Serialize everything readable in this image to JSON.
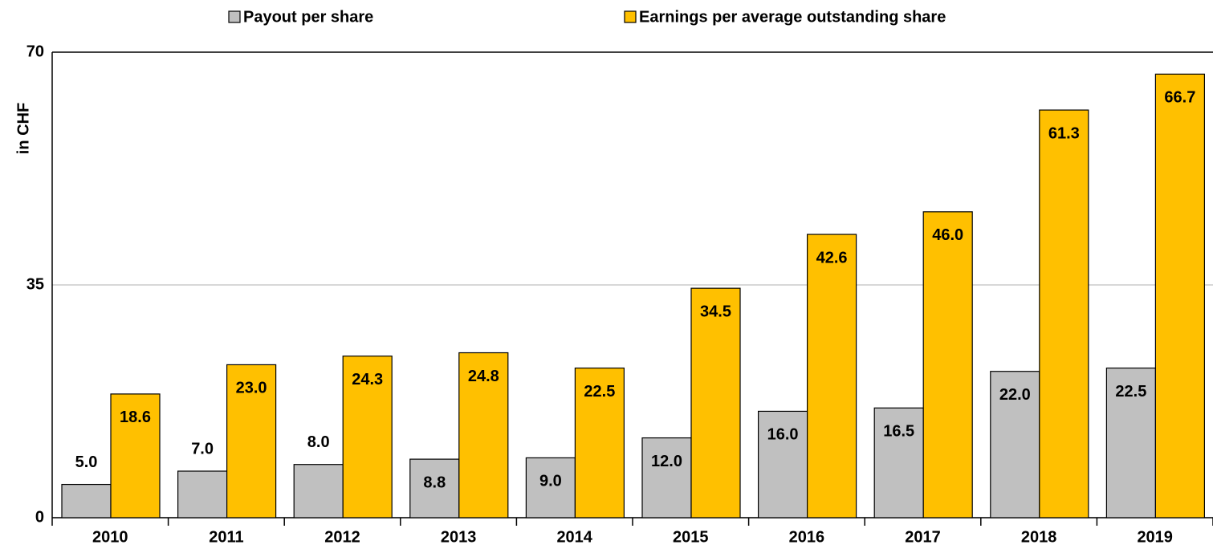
{
  "chart_data": {
    "type": "bar",
    "y_label": "in CHF",
    "categories": [
      "2010",
      "2011",
      "2012",
      "2013",
      "2014",
      "2015",
      "2016",
      "2017",
      "2018",
      "2019"
    ],
    "series": [
      {
        "name": "Payout per share",
        "color": "#c0c0c0",
        "values": [
          5.0,
          7.0,
          8.0,
          8.8,
          9.0,
          12.0,
          16.0,
          16.5,
          22.0,
          22.5
        ],
        "value_labels": [
          "5.0",
          "7.0",
          "8.0",
          "8.8",
          "9.0",
          "12.0",
          "16.0",
          "16.5",
          "22.0",
          "22.5"
        ]
      },
      {
        "name": "Earnings per average outstanding share",
        "color": "#ffc000",
        "values": [
          18.6,
          23.0,
          24.3,
          24.8,
          22.5,
          34.5,
          42.6,
          46.0,
          61.3,
          66.7
        ],
        "value_labels": [
          "18.6",
          "23.0",
          "24.3",
          "24.8",
          "22.5",
          "34.5",
          "42.6",
          "46.0",
          "61.3",
          "66.7"
        ]
      }
    ],
    "ylim": [
      0,
      70
    ],
    "yticks": [
      0,
      35,
      70
    ],
    "grid": true,
    "legend": "top"
  }
}
